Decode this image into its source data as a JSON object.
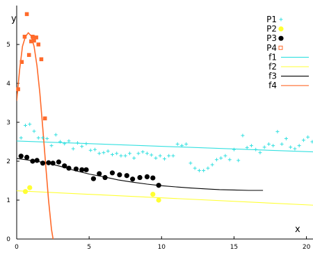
{
  "chart_data": {
    "type": "scatter",
    "xlabel": "x",
    "ylabel": "y",
    "xlim": [
      0,
      20.5
    ],
    "ylim": [
      0,
      6.0
    ],
    "x_ticks": [
      0,
      5,
      10,
      15,
      20
    ],
    "y_ticks": [
      0,
      1,
      2,
      3,
      4,
      5
    ],
    "grid": false,
    "legend_position": "top-right",
    "colors": {
      "P1": "#33e0e0",
      "P2": "#ffff33",
      "P3": "#000000",
      "P4": "#ff6a2a",
      "f1": "#33e0e0",
      "f2": "#ffff33",
      "f3": "#000000",
      "f4": "#ff6a2a"
    },
    "series": [
      {
        "name": "P1",
        "kind": "points",
        "marker": "plus",
        "x": [
          0.3,
          0.6,
          0.9,
          1.2,
          1.5,
          1.8,
          2.1,
          2.4,
          2.7,
          3.0,
          3.3,
          3.6,
          3.9,
          4.2,
          4.5,
          4.8,
          5.1,
          5.4,
          5.7,
          6.0,
          6.3,
          6.6,
          6.9,
          7.2,
          7.5,
          7.8,
          8.1,
          8.4,
          8.7,
          9.0,
          9.3,
          9.6,
          9.9,
          10.2,
          10.5,
          10.8,
          11.1,
          11.4,
          11.7,
          12.0,
          12.3,
          12.6,
          12.9,
          13.2,
          13.5,
          13.8,
          14.1,
          14.4,
          14.7,
          15.0,
          15.3,
          15.6,
          15.9,
          16.2,
          16.5,
          16.8,
          17.1,
          17.4,
          17.7,
          18.0,
          18.3,
          18.6,
          18.9,
          19.2,
          19.5,
          19.8,
          20.1,
          20.4
        ],
        "y": [
          2.6,
          2.92,
          2.95,
          2.77,
          2.6,
          2.6,
          2.58,
          2.4,
          2.68,
          2.5,
          2.45,
          2.52,
          2.32,
          2.47,
          2.38,
          2.45,
          2.28,
          2.3,
          2.2,
          2.22,
          2.26,
          2.17,
          2.2,
          2.14,
          2.14,
          2.2,
          2.08,
          2.2,
          2.24,
          2.2,
          2.16,
          2.08,
          2.14,
          2.06,
          2.14,
          2.14,
          2.44,
          2.4,
          2.44,
          1.95,
          1.82,
          1.76,
          1.76,
          1.82,
          1.91,
          2.04,
          2.08,
          2.14,
          2.04,
          2.3,
          2.02,
          2.66,
          2.35,
          2.4,
          2.3,
          2.22,
          2.36,
          2.44,
          2.4,
          2.76,
          2.44,
          2.58,
          2.36,
          2.32,
          2.4,
          2.54,
          2.62,
          2.5
        ]
      },
      {
        "name": "P2",
        "kind": "points",
        "marker": "circle",
        "x": [
          0.6,
          0.9,
          9.4,
          9.8
        ],
        "y": [
          1.22,
          1.32,
          1.15,
          1.0
        ]
      },
      {
        "name": "P3",
        "kind": "points",
        "marker": "circle",
        "x": [
          0.3,
          0.7,
          1.1,
          1.4,
          1.8,
          2.2,
          2.5,
          2.9,
          3.3,
          3.6,
          4.1,
          4.5,
          4.8,
          5.3,
          5.7,
          6.1,
          6.6,
          7.1,
          7.6,
          8.0,
          8.5,
          9.0,
          9.4,
          9.8
        ],
        "y": [
          2.13,
          2.1,
          2.0,
          2.02,
          1.95,
          1.96,
          1.95,
          1.98,
          1.88,
          1.82,
          1.8,
          1.78,
          1.78,
          1.55,
          1.68,
          1.58,
          1.7,
          1.65,
          1.63,
          1.54,
          1.58,
          1.6,
          1.57,
          1.38
        ]
      },
      {
        "name": "P4",
        "kind": "points",
        "marker": "square",
        "x": [
          0.1,
          0.35,
          0.55,
          0.7,
          0.85,
          1.0,
          1.1,
          1.2,
          1.35,
          1.5,
          1.7,
          1.95
        ],
        "y": [
          3.85,
          4.55,
          5.2,
          5.78,
          4.73,
          5.08,
          5.2,
          5.1,
          5.18,
          5.0,
          4.62,
          3.1
        ]
      },
      {
        "name": "f1",
        "kind": "line",
        "x": [
          0,
          20.5
        ],
        "y": [
          2.52,
          2.24
        ]
      },
      {
        "name": "f2",
        "kind": "line",
        "x": [
          0,
          20.5
        ],
        "y": [
          1.24,
          0.87
        ]
      },
      {
        "name": "f3",
        "kind": "line",
        "x": [
          0,
          1,
          2,
          3,
          4,
          5,
          6,
          7,
          8,
          9,
          10,
          11,
          12,
          13,
          14,
          15,
          16,
          17
        ],
        "y": [
          2.07,
          2.02,
          1.96,
          1.87,
          1.76,
          1.67,
          1.6,
          1.52,
          1.46,
          1.41,
          1.37,
          1.34,
          1.31,
          1.29,
          1.27,
          1.26,
          1.25,
          1.25
        ]
      },
      {
        "name": "f4",
        "kind": "line",
        "x": [
          0,
          0.2,
          0.4,
          0.6,
          0.8,
          1.0,
          1.2,
          1.4,
          1.6,
          1.8,
          2.0,
          2.2,
          2.4,
          2.6
        ],
        "y": [
          3.55,
          4.35,
          4.95,
          5.2,
          5.3,
          5.22,
          4.95,
          4.45,
          3.75,
          2.85,
          1.9,
          1.0,
          0.25,
          -0.2
        ]
      }
    ]
  }
}
